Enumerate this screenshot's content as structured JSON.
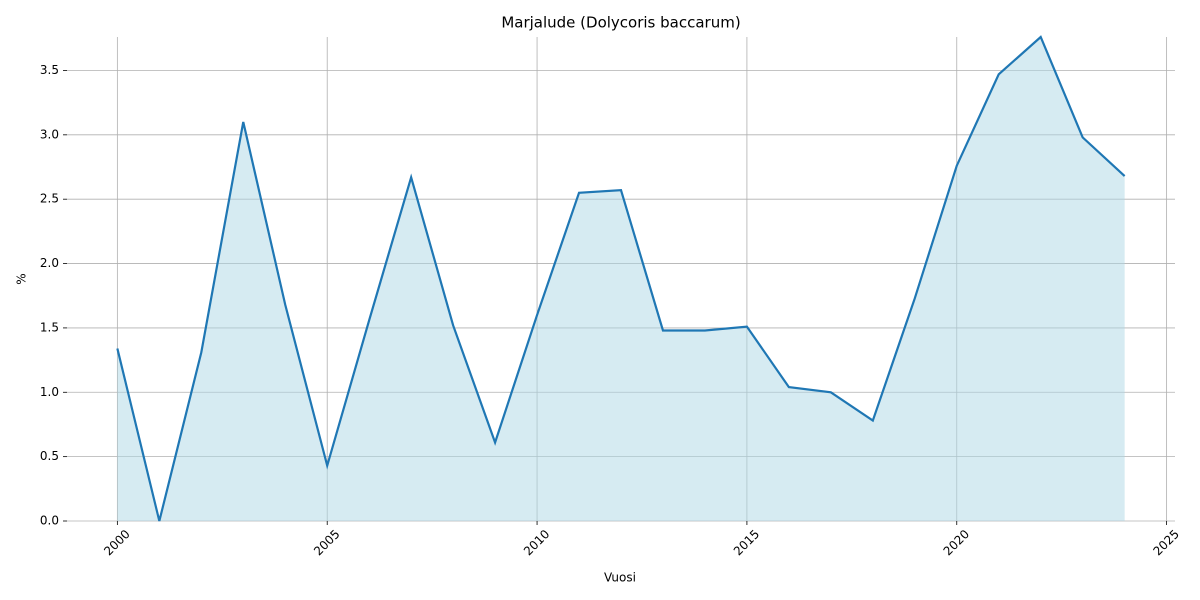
{
  "chart_data": {
    "type": "area",
    "title": "Marjalude (Dolycoris baccarum)",
    "x_label": "Vuosi",
    "y_label": "%",
    "x": [
      2000,
      2001,
      2002,
      2003,
      2004,
      2005,
      2006,
      2007,
      2008,
      2009,
      2010,
      2011,
      2012,
      2013,
      2014,
      2015,
      2016,
      2017,
      2018,
      2019,
      2020,
      2021,
      2022,
      2023,
      2024
    ],
    "series": [
      {
        "name": "%",
        "color": "#1f77b4",
        "fill": "#add8e6",
        "values": [
          1.34,
          0,
          1.31,
          3.1,
          1.68,
          0.43,
          1.56,
          2.67,
          1.52,
          0.61,
          1.6,
          2.55,
          2.57,
          1.48,
          1.48,
          1.51,
          1.04,
          1.0,
          0.78,
          1.73,
          2.76,
          3.47,
          3.76,
          2.98,
          2.68
        ]
      }
    ],
    "xlim": [
      1998.8,
      2025.2
    ],
    "xticks": [
      2000,
      2005,
      2010,
      2015,
      2020,
      2025
    ],
    "ylim": [
      0,
      3.76
    ],
    "yticks": [
      {
        "value": 0,
        "label": "0.0"
      },
      0.5,
      {
        "value": 1,
        "label": "1.0"
      },
      1.5,
      {
        "value": 2,
        "label": "2.0"
      },
      2.5,
      {
        "value": 3,
        "label": "3.0"
      },
      3.5
    ],
    "grid": true
  }
}
